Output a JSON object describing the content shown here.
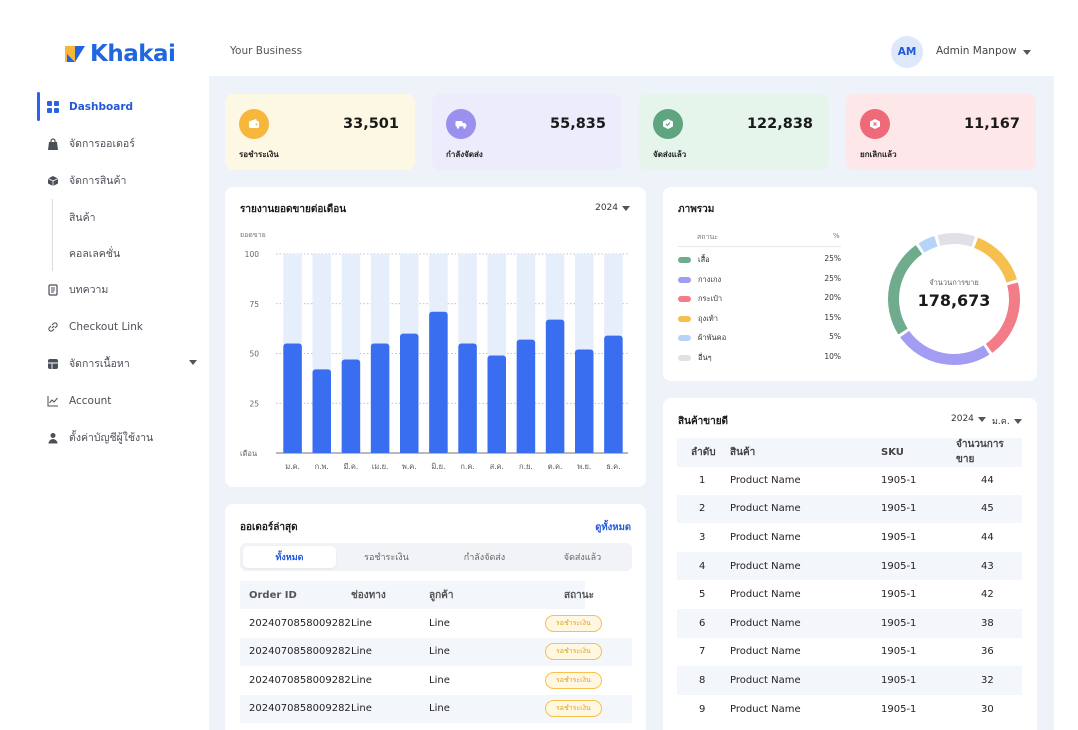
{
  "brand": {
    "name": "Khakai"
  },
  "topbar": {
    "business": "Your Business",
    "avatar_initials": "AM",
    "user_name": "Admin Manpow"
  },
  "nav": [
    {
      "label": "Dashboard",
      "icon": "grid-icon",
      "active": true
    },
    {
      "label": "จัดการออเดอร์",
      "icon": "bag-icon"
    },
    {
      "label": "จัดการสินค้า",
      "icon": "box-icon"
    },
    {
      "label": "สินค้า",
      "icon": "",
      "sub": true
    },
    {
      "label": "คอลเลคชั่น",
      "icon": "",
      "sub": true
    },
    {
      "label": "บทความ",
      "icon": "article-icon"
    },
    {
      "label": "Checkout Link",
      "icon": "link-icon"
    },
    {
      "label": "จัดการเนื้อหา",
      "icon": "content-icon",
      "has_caret": true
    },
    {
      "label": "Account",
      "icon": "chart-icon"
    },
    {
      "label": "ตั้งค่าบัญชีผู้ใช้งาน",
      "icon": "user-icon"
    }
  ],
  "stats": [
    {
      "label": "รอชำระเงิน",
      "value": "33,501",
      "bg": "#fdf8e4",
      "icon_bg": "#f6b73c",
      "icon": "wallet-icon"
    },
    {
      "label": "กำลังจัดส่ง",
      "value": "55,835",
      "bg": "#ececfc",
      "icon_bg": "#9a91ef",
      "icon": "truck-icon"
    },
    {
      "label": "จัดส่งแล้ว",
      "value": "122,838",
      "bg": "#e6f5ec",
      "icon_bg": "#5fa57f",
      "icon": "box-check-icon"
    },
    {
      "label": "ยกเลิกแล้ว",
      "value": "11,167",
      "bg": "#fde7e9",
      "icon_bg": "#ef6a78",
      "icon": "box-x-icon"
    }
  ],
  "sales_chart": {
    "title": "รายงานยอดขายต่อเดือน",
    "year": "2024",
    "ylabel": "ยอดขาย",
    "xlabel_start": "เดือน",
    "chart_data": {
      "type": "bar",
      "categories": [
        "ม.ค.",
        "ก.พ.",
        "มี.ค.",
        "เม.ย.",
        "พ.ค.",
        "มิ.ย.",
        "ก.ค.",
        "ส.ค.",
        "ก.ย.",
        "ต.ค.",
        "พ.ย.",
        "ธ.ค."
      ],
      "values": [
        55,
        42,
        47,
        55,
        60,
        71,
        55,
        49,
        57,
        67,
        52,
        59
      ],
      "max_values": [
        100,
        100,
        100,
        100,
        100,
        100,
        100,
        100,
        100,
        100,
        100,
        100
      ],
      "yticks": [
        100,
        75,
        50,
        25
      ],
      "ylim": [
        0,
        100
      ],
      "bar_color": "#3a6ef0",
      "track_color": "#e6eefb"
    }
  },
  "overview": {
    "title": "ภาพรวม",
    "col_status": "สถานะ",
    "col_pct": "%",
    "center_label": "จำนวนการขาย",
    "center_value": "178,673",
    "items": [
      {
        "label": "เสื้อ",
        "pct": "25%",
        "value": 25,
        "color": "#6fab8d"
      },
      {
        "label": "กางเกง",
        "pct": "25%",
        "value": 25,
        "color": "#a29cf2"
      },
      {
        "label": "กระเป๋า",
        "pct": "20%",
        "value": 20,
        "color": "#f27c87"
      },
      {
        "label": "ถุงเท้า",
        "pct": "15%",
        "value": 15,
        "color": "#f6c04e"
      },
      {
        "label": "ผ้าพันคอ",
        "pct": "5%",
        "value": 5,
        "color": "#b7d3f7"
      },
      {
        "label": "อื่นๆ",
        "pct": "10%",
        "value": 10,
        "color": "#dfe1e6"
      }
    ]
  },
  "orders": {
    "title": "ออเดอร์ล่าสุด",
    "view_all": "ดูทั้งหมด",
    "tabs": [
      "ทั้งหมด",
      "รอชำระเงิน",
      "กำลังจัดส่ง",
      "จัดส่งแล้ว"
    ],
    "headers": [
      "Order ID",
      "ช่องทาง",
      "ลูกค้า",
      "สถานะ"
    ],
    "rows": [
      {
        "id": "2024070858009282",
        "channel": "Line",
        "customer": "Line",
        "status": "รอชำระเงิน"
      },
      {
        "id": "2024070858009282",
        "channel": "Line",
        "customer": "Line",
        "status": "รอชำระเงิน"
      },
      {
        "id": "2024070858009282",
        "channel": "Line",
        "customer": "Line",
        "status": "รอชำระเงิน"
      },
      {
        "id": "2024070858009282",
        "channel": "Line",
        "customer": "Line",
        "status": "รอชำระเงิน"
      }
    ]
  },
  "bestsellers": {
    "title": "สินค้าขายดี",
    "year": "2024",
    "month": "ม.ค.",
    "headers": [
      "ลำดับ",
      "สินค้า",
      "SKU",
      "จำนวนการขาย"
    ],
    "rows": [
      {
        "rank": "1",
        "name": "Product Name",
        "sku": "1905-1",
        "qty": "44"
      },
      {
        "rank": "2",
        "name": "Product Name",
        "sku": "1905-1",
        "qty": "45"
      },
      {
        "rank": "3",
        "name": "Product Name",
        "sku": "1905-1",
        "qty": "44"
      },
      {
        "rank": "4",
        "name": "Product Name",
        "sku": "1905-1",
        "qty": "43"
      },
      {
        "rank": "5",
        "name": "Product Name",
        "sku": "1905-1",
        "qty": "42"
      },
      {
        "rank": "6",
        "name": "Product Name",
        "sku": "1905-1",
        "qty": "38"
      },
      {
        "rank": "7",
        "name": "Product Name",
        "sku": "1905-1",
        "qty": "36"
      },
      {
        "rank": "8",
        "name": "Product Name",
        "sku": "1905-1",
        "qty": "32"
      },
      {
        "rank": "9",
        "name": "Product Name",
        "sku": "1905-1",
        "qty": "30"
      }
    ]
  }
}
